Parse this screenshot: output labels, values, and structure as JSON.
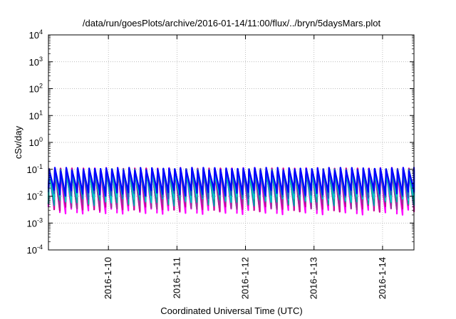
{
  "chart_data": {
    "type": "line",
    "title": "/data/run/goesPlots/archive/2016-01-14/11:00/flux/../bryn/5daysMars.plot",
    "xlabel": "Coordinated Universal Time (UTC)",
    "ylabel": "cSv/day",
    "yscale": "log",
    "ylim": [
      0.0001,
      10000
    ],
    "y_ticks": [
      {
        "value": 0.0001,
        "base": "10",
        "exp": "-4"
      },
      {
        "value": 0.001,
        "base": "10",
        "exp": "-3"
      },
      {
        "value": 0.01,
        "base": "10",
        "exp": "-2"
      },
      {
        "value": 0.1,
        "base": "10",
        "exp": "-1"
      },
      {
        "value": 1,
        "base": "10",
        "exp": "0"
      },
      {
        "value": 10,
        "base": "10",
        "exp": "1"
      },
      {
        "value": 100,
        "base": "10",
        "exp": "2"
      },
      {
        "value": 1000,
        "base": "10",
        "exp": "3"
      },
      {
        "value": 10000,
        "base": "10",
        "exp": "4"
      }
    ],
    "xlim": [
      "2016-01-09T03:00",
      "2016-01-14T11:00"
    ],
    "x_ticks": [
      "2016-1-10",
      "2016-1-11",
      "2016-1-12",
      "2016-1-13",
      "2016-1-14"
    ],
    "grid": true,
    "legend": "none",
    "pattern": {
      "description_free": true,
      "period_hours": 2,
      "peak_values": [
        0.1,
        0.09,
        0.085,
        0.08,
        0.075,
        0.07
      ],
      "trough_values": [
        0.004,
        0.006,
        0.008,
        0.01,
        0.013,
        0.015
      ]
    },
    "series": [
      {
        "color": "#ff00ff",
        "peak": 0.1,
        "trough": 0.003
      },
      {
        "color": "#cc0099",
        "peak": 0.095,
        "trough": 0.004
      },
      {
        "color": "#993399",
        "peak": 0.09,
        "trough": 0.005
      },
      {
        "color": "#00a0a0",
        "peak": 0.085,
        "trough": 0.007
      },
      {
        "color": "#00c8c8",
        "peak": 0.08,
        "trough": 0.009
      },
      {
        "color": "#2060c0",
        "peak": 0.09,
        "trough": 0.012
      },
      {
        "color": "#0000ff",
        "peak": 0.1,
        "trough": 0.015
      }
    ]
  }
}
